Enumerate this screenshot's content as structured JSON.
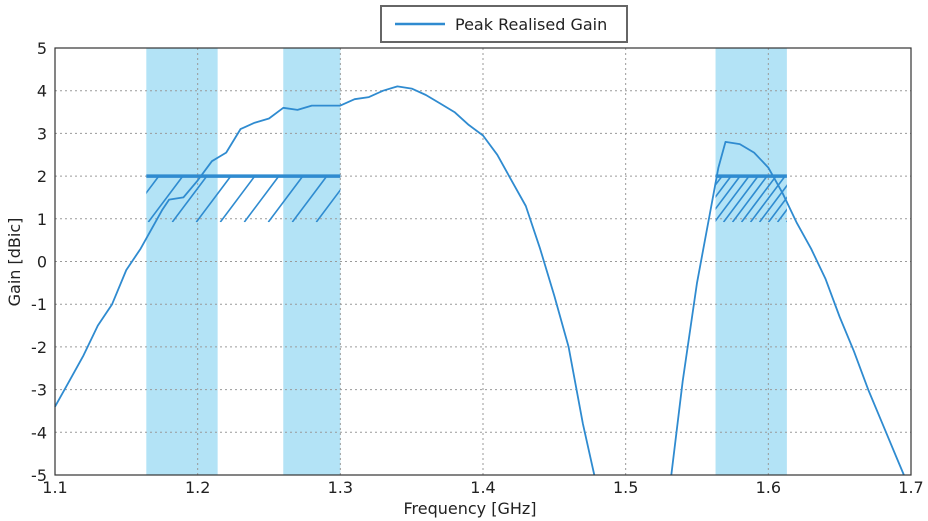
{
  "chart_data": {
    "type": "line",
    "title": "",
    "xlabel": "Frequency [GHz]",
    "ylabel": "Gain [dBic]",
    "xlim": [
      1.1,
      1.7
    ],
    "ylim": [
      -5,
      5
    ],
    "xticks": [
      "1.1",
      "1.2",
      "1.3",
      "1.4",
      "1.5",
      "1.6",
      "1.7"
    ],
    "yticks": [
      "-5",
      "-4",
      "-3",
      "-2",
      "-1",
      "0",
      "1",
      "2",
      "3",
      "4",
      "5"
    ],
    "grid": true,
    "legend": {
      "position": "top-center",
      "entries": [
        "Peak Realised Gain"
      ]
    },
    "colors": {
      "line": "#2f8bd0",
      "band": "#b3e3f6",
      "spec": "#2f8bd0"
    },
    "bands": [
      {
        "x0": 1.164,
        "x1": 1.214
      },
      {
        "x0": 1.26,
        "x1": 1.3
      },
      {
        "x0": 1.563,
        "x1": 1.613
      }
    ],
    "spec_lines": [
      {
        "x0": 1.164,
        "x1": 1.3,
        "y": 2
      },
      {
        "x0": 1.563,
        "x1": 1.613,
        "y": 2
      }
    ],
    "series": [
      {
        "name": "Peak Realised Gain",
        "segments": [
          [
            [
              1.1,
              -3.4
            ],
            [
              1.11,
              -2.8
            ],
            [
              1.12,
              -2.2
            ],
            [
              1.13,
              -1.5
            ],
            [
              1.14,
              -1.0
            ],
            [
              1.15,
              -0.2
            ],
            [
              1.16,
              0.3
            ],
            [
              1.17,
              0.9
            ],
            [
              1.175,
              1.2
            ],
            [
              1.18,
              1.45
            ],
            [
              1.19,
              1.5
            ],
            [
              1.2,
              1.9
            ],
            [
              1.21,
              2.35
            ],
            [
              1.215,
              2.45
            ],
            [
              1.22,
              2.55
            ],
            [
              1.23,
              3.1
            ],
            [
              1.24,
              3.25
            ],
            [
              1.25,
              3.35
            ],
            [
              1.26,
              3.6
            ],
            [
              1.27,
              3.55
            ],
            [
              1.28,
              3.65
            ],
            [
              1.3,
              3.65
            ],
            [
              1.31,
              3.8
            ],
            [
              1.32,
              3.85
            ],
            [
              1.33,
              4.0
            ],
            [
              1.34,
              4.1
            ],
            [
              1.35,
              4.05
            ],
            [
              1.36,
              3.9
            ],
            [
              1.37,
              3.7
            ],
            [
              1.38,
              3.5
            ],
            [
              1.39,
              3.2
            ],
            [
              1.4,
              2.95
            ],
            [
              1.41,
              2.5
            ],
            [
              1.42,
              1.9
            ],
            [
              1.43,
              1.3
            ],
            [
              1.44,
              0.3
            ],
            [
              1.45,
              -0.8
            ],
            [
              1.46,
              -2.0
            ],
            [
              1.47,
              -3.8
            ],
            [
              1.478,
              -5.0
            ]
          ],
          [
            [
              1.532,
              -5.0
            ],
            [
              1.54,
              -2.8
            ],
            [
              1.55,
              -0.5
            ],
            [
              1.56,
              1.3
            ],
            [
              1.565,
              2.2
            ],
            [
              1.57,
              2.8
            ],
            [
              1.58,
              2.75
            ],
            [
              1.59,
              2.55
            ],
            [
              1.6,
              2.2
            ],
            [
              1.61,
              1.6
            ],
            [
              1.62,
              0.9
            ],
            [
              1.63,
              0.3
            ],
            [
              1.64,
              -0.4
            ],
            [
              1.65,
              -1.3
            ],
            [
              1.66,
              -2.1
            ],
            [
              1.67,
              -3.0
            ],
            [
              1.68,
              -3.8
            ],
            [
              1.69,
              -4.6
            ],
            [
              1.695,
              -5.0
            ]
          ]
        ]
      }
    ]
  }
}
